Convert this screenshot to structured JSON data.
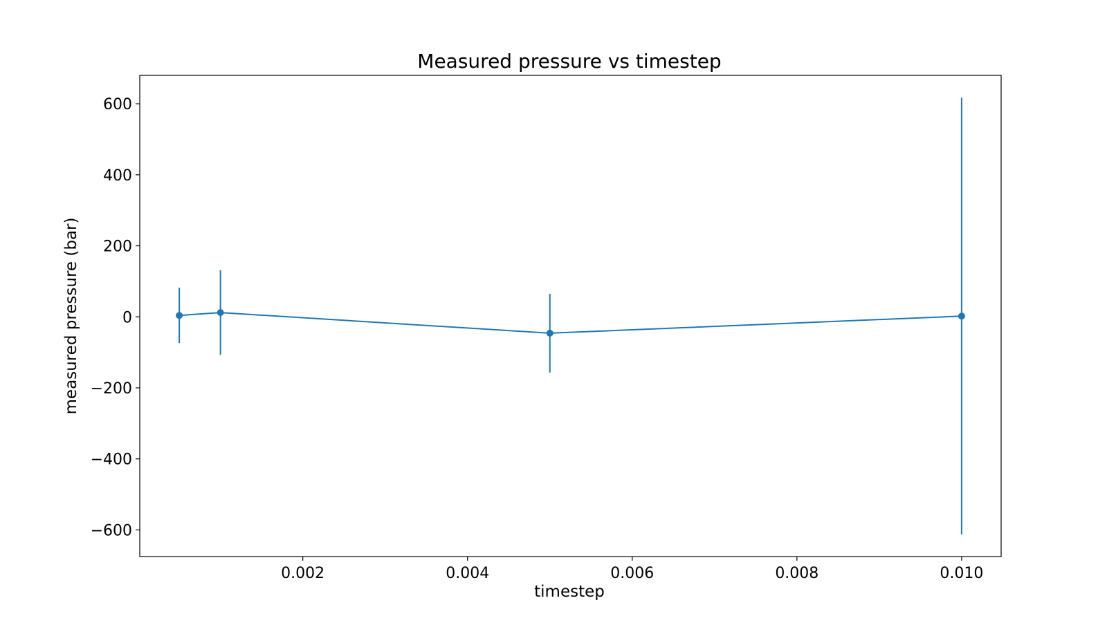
{
  "chart_data": {
    "type": "line",
    "title": "Measured pressure vs timestep",
    "xlabel": "timestep",
    "ylabel": "measured pressure (bar)",
    "xlim": [
      2e-05,
      0.01048
    ],
    "ylim": [
      -675,
      680
    ],
    "xticks": [
      {
        "value": 0.002,
        "label": "0.002"
      },
      {
        "value": 0.004,
        "label": "0.004"
      },
      {
        "value": 0.006,
        "label": "0.006"
      },
      {
        "value": 0.008,
        "label": "0.008"
      },
      {
        "value": 0.01,
        "label": "0.010"
      }
    ],
    "yticks": [
      {
        "value": 600,
        "label": "600"
      },
      {
        "value": 400,
        "label": "400"
      },
      {
        "value": 200,
        "label": "200"
      },
      {
        "value": 0,
        "label": "0"
      },
      {
        "value": -200,
        "label": "−200"
      },
      {
        "value": -400,
        "label": "−400"
      },
      {
        "value": -600,
        "label": "−600"
      }
    ],
    "grid": false,
    "legend": "none",
    "series": [
      {
        "color": "#1f77b4",
        "marker": "circle",
        "error_bars": true,
        "points": [
          {
            "x": 0.0005,
            "y": 4,
            "err": 78
          },
          {
            "x": 0.001,
            "y": 12,
            "err": 119
          },
          {
            "x": 0.005,
            "y": -46,
            "err": 111
          },
          {
            "x": 0.01,
            "y": 2,
            "err": 615
          }
        ]
      }
    ]
  }
}
